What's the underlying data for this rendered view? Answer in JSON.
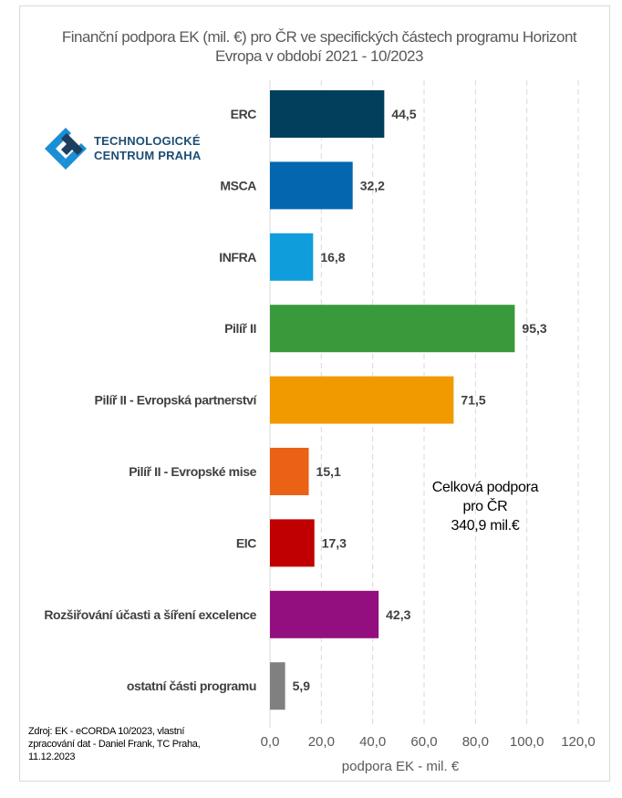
{
  "chart_data": {
    "type": "bar",
    "orientation": "horizontal",
    "title": "Finanční podpora EK (mil. €) pro ČR ve specifických částech programu Horizont Evropa v období 2021 - 10/2023",
    "categories": [
      "ERC",
      "MSCA",
      "INFRA",
      "Pilíř II",
      "Pilíř II - Evropská partnerství",
      "Pilíř II - Evropské mise",
      "EIC",
      "Rozšiřování účasti a šíření excelence",
      "ostatní části programu"
    ],
    "values": [
      44.5,
      32.2,
      16.8,
      95.3,
      71.5,
      15.1,
      17.3,
      42.3,
      5.9
    ],
    "value_labels": [
      "44,5",
      "32,2",
      "16,8",
      "95,3",
      "71,5",
      "15,1",
      "17,3",
      "42,3",
      "5,9"
    ],
    "colors": [
      "#023f5c",
      "#0566b0",
      "#0f9ddc",
      "#389a3a",
      "#f09a00",
      "#eb6115",
      "#c00000",
      "#930f7f",
      "#808080"
    ],
    "xlabel": "podpora EK - mil. €",
    "xlim": [
      0,
      120
    ],
    "xticks": [
      "0,0",
      "20,0",
      "40,0",
      "60,0",
      "80,0",
      "100,0",
      "120,0"
    ],
    "grid": "vertical dashed"
  },
  "logo": {
    "line1": "TECHNOLOGICKÉ",
    "line2": "CENTRUM PRAHA"
  },
  "annotation": {
    "line1": "Celková podpora",
    "line2": "pro ČR",
    "line3": "340,9 mil.€"
  },
  "source": "Zdroj: EK - eCORDA 10/2023, vlastní zpracování dat - Daniel Frank, TC Praha, 11.12.2023"
}
